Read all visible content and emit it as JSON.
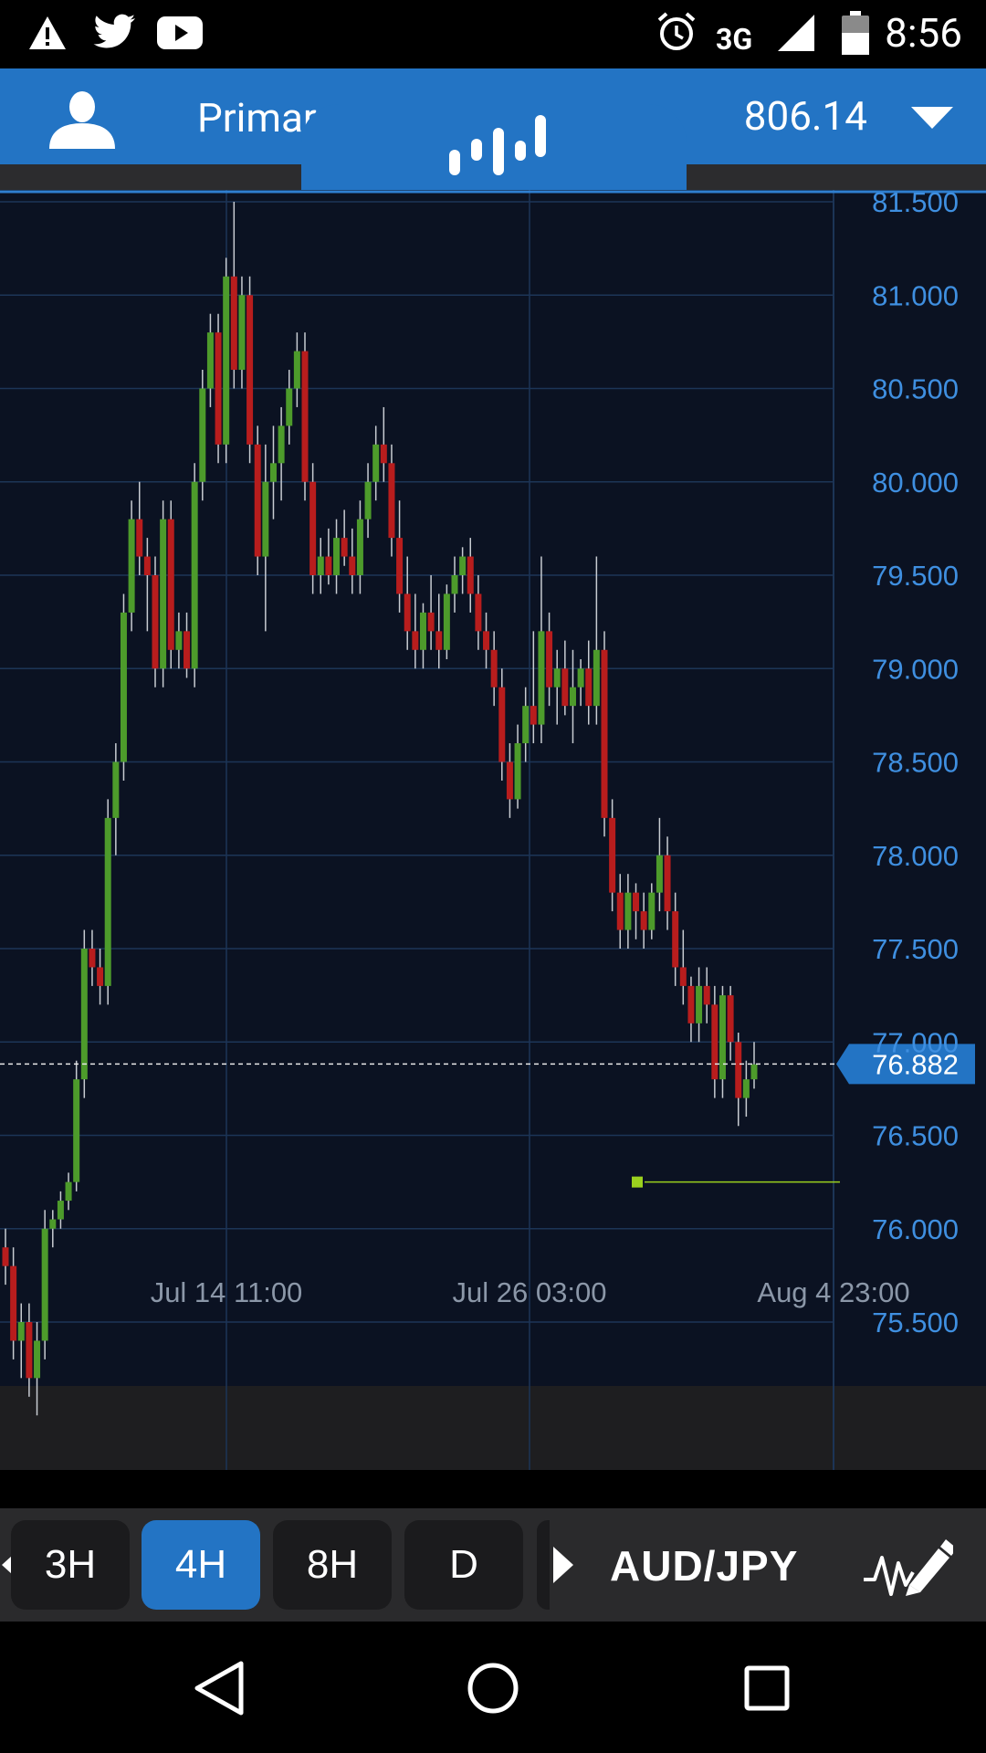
{
  "status_bar": {
    "network": "3G",
    "time": "8:56",
    "icons": [
      "warning-icon",
      "twitter-icon",
      "youtube-icon",
      "alarm-icon",
      "signal-icon",
      "battery-icon"
    ]
  },
  "header": {
    "account_label": "Primar",
    "balance": "806.14"
  },
  "chart": {
    "symbol": "AUD/JPY",
    "current_price_label": "76.882",
    "y_labels": [
      "81.500",
      "81.000",
      "80.500",
      "80.000",
      "79.500",
      "79.000",
      "78.500",
      "78.000",
      "77.500",
      "77.000",
      "76.500",
      "76.000",
      "75.500"
    ],
    "x_labels": [
      "Jul 14 11:00",
      "Jul 26 03:00",
      "Aug 4 23:00"
    ]
  },
  "chart_data": {
    "type": "candlestick",
    "title": "",
    "xlabel": "",
    "ylabel": "",
    "ylim": [
      74.8,
      81.53
    ],
    "grid": true,
    "x_ticks": [
      "Jul 14 11:00",
      "Jul 26 03:00",
      "Aug 4 23:00"
    ],
    "current_price": 76.882,
    "marker_level": 76.25,
    "up_color": "#4d9b2b",
    "down_color": "#b81d1d",
    "ohlc": [
      [
        75.9,
        76.0,
        75.7,
        75.8
      ],
      [
        75.8,
        75.9,
        75.3,
        75.4
      ],
      [
        75.4,
        75.6,
        75.2,
        75.5
      ],
      [
        75.5,
        75.6,
        75.1,
        75.2
      ],
      [
        75.2,
        75.5,
        75.0,
        75.4
      ],
      [
        75.4,
        76.1,
        75.3,
        76.0
      ],
      [
        76.0,
        76.1,
        75.9,
        76.05
      ],
      [
        76.05,
        76.2,
        76.0,
        76.15
      ],
      [
        76.15,
        76.3,
        76.1,
        76.25
      ],
      [
        76.25,
        76.9,
        76.2,
        76.8
      ],
      [
        76.8,
        77.6,
        76.7,
        77.5
      ],
      [
        77.5,
        77.6,
        77.3,
        77.4
      ],
      [
        77.4,
        77.5,
        77.2,
        77.3
      ],
      [
        77.3,
        78.3,
        77.2,
        78.2
      ],
      [
        78.2,
        78.6,
        78.0,
        78.5
      ],
      [
        78.5,
        79.4,
        78.4,
        79.3
      ],
      [
        79.3,
        79.9,
        79.2,
        79.8
      ],
      [
        79.8,
        80.0,
        79.5,
        79.6
      ],
      [
        79.6,
        79.7,
        79.2,
        79.5
      ],
      [
        79.5,
        79.6,
        78.9,
        79.0
      ],
      [
        79.0,
        79.9,
        78.9,
        79.8
      ],
      [
        79.8,
        79.9,
        79.0,
        79.1
      ],
      [
        79.1,
        79.3,
        79.0,
        79.2
      ],
      [
        79.2,
        79.3,
        78.95,
        79.0
      ],
      [
        79.0,
        80.1,
        78.9,
        80.0
      ],
      [
        80.0,
        80.6,
        79.9,
        80.5
      ],
      [
        80.5,
        80.9,
        80.4,
        80.8
      ],
      [
        80.8,
        80.9,
        80.1,
        80.2
      ],
      [
        80.2,
        81.2,
        80.1,
        81.1
      ],
      [
        81.1,
        81.5,
        80.5,
        80.6
      ],
      [
        80.6,
        81.1,
        80.5,
        81.0
      ],
      [
        81.0,
        81.1,
        80.1,
        80.2
      ],
      [
        80.2,
        80.3,
        79.5,
        79.6
      ],
      [
        79.6,
        80.2,
        79.2,
        80.0
      ],
      [
        80.0,
        80.3,
        79.8,
        80.1
      ],
      [
        80.1,
        80.4,
        79.9,
        80.3
      ],
      [
        80.3,
        80.6,
        80.2,
        80.5
      ],
      [
        80.5,
        80.8,
        80.4,
        80.7
      ],
      [
        80.7,
        80.8,
        79.9,
        80.0
      ],
      [
        80.0,
        80.1,
        79.4,
        79.5
      ],
      [
        79.5,
        79.7,
        79.4,
        79.6
      ],
      [
        79.6,
        79.75,
        79.45,
        79.5
      ],
      [
        79.5,
        79.8,
        79.4,
        79.7
      ],
      [
        79.7,
        79.85,
        79.55,
        79.6
      ],
      [
        79.6,
        79.75,
        79.4,
        79.5
      ],
      [
        79.5,
        79.9,
        79.4,
        79.8
      ],
      [
        79.8,
        80.1,
        79.7,
        80.0
      ],
      [
        80.0,
        80.3,
        79.9,
        80.2
      ],
      [
        80.2,
        80.4,
        80.0,
        80.1
      ],
      [
        80.1,
        80.2,
        79.6,
        79.7
      ],
      [
        79.7,
        79.9,
        79.3,
        79.4
      ],
      [
        79.4,
        79.6,
        79.1,
        79.2
      ],
      [
        79.2,
        79.4,
        79.0,
        79.1
      ],
      [
        79.1,
        79.35,
        79.0,
        79.3
      ],
      [
        79.3,
        79.5,
        79.1,
        79.2
      ],
      [
        79.2,
        79.4,
        79.0,
        79.1
      ],
      [
        79.1,
        79.45,
        79.05,
        79.4
      ],
      [
        79.4,
        79.6,
        79.3,
        79.5
      ],
      [
        79.5,
        79.65,
        79.4,
        79.6
      ],
      [
        79.6,
        79.7,
        79.3,
        79.4
      ],
      [
        79.4,
        79.5,
        79.1,
        79.2
      ],
      [
        79.2,
        79.3,
        79.0,
        79.1
      ],
      [
        79.1,
        79.2,
        78.8,
        78.9
      ],
      [
        78.9,
        79.0,
        78.4,
        78.5
      ],
      [
        78.5,
        78.6,
        78.2,
        78.3
      ],
      [
        78.3,
        78.7,
        78.25,
        78.6
      ],
      [
        78.6,
        78.9,
        78.5,
        78.8
      ],
      [
        78.8,
        79.2,
        78.6,
        78.7
      ],
      [
        78.7,
        79.6,
        78.6,
        79.2
      ],
      [
        79.2,
        79.3,
        78.8,
        78.9
      ],
      [
        78.9,
        79.1,
        78.7,
        79.0
      ],
      [
        79.0,
        79.15,
        78.75,
        78.8
      ],
      [
        78.8,
        79.1,
        78.6,
        78.9
      ],
      [
        78.9,
        79.05,
        78.8,
        79.0
      ],
      [
        79.0,
        79.15,
        78.7,
        78.8
      ],
      [
        78.8,
        79.6,
        78.7,
        79.1
      ],
      [
        79.1,
        79.2,
        78.1,
        78.2
      ],
      [
        78.2,
        78.3,
        77.7,
        77.8
      ],
      [
        77.8,
        77.9,
        77.5,
        77.6
      ],
      [
        77.6,
        77.9,
        77.5,
        77.8
      ],
      [
        77.8,
        77.85,
        77.55,
        77.7
      ],
      [
        77.7,
        77.8,
        77.5,
        77.6
      ],
      [
        77.6,
        77.85,
        77.55,
        77.8
      ],
      [
        77.8,
        78.2,
        77.7,
        78.0
      ],
      [
        78.0,
        78.1,
        77.6,
        77.7
      ],
      [
        77.7,
        77.8,
        77.3,
        77.4
      ],
      [
        77.4,
        77.6,
        77.2,
        77.3
      ],
      [
        77.3,
        77.35,
        77.0,
        77.1
      ],
      [
        77.1,
        77.4,
        77.0,
        77.3
      ],
      [
        77.3,
        77.4,
        77.1,
        77.2
      ],
      [
        77.2,
        77.3,
        76.7,
        76.8
      ],
      [
        76.8,
        77.3,
        76.7,
        77.25
      ],
      [
        77.25,
        77.3,
        76.9,
        77.0
      ],
      [
        77.0,
        77.05,
        76.55,
        76.7
      ],
      [
        76.7,
        76.9,
        76.6,
        76.8
      ],
      [
        76.8,
        77.0,
        76.75,
        76.88
      ]
    ]
  },
  "toolbar": {
    "timeframes": [
      "3H",
      "4H",
      "8H",
      "D"
    ],
    "active_timeframe": "4H",
    "symbol": "AUD/JPY"
  },
  "nav": {
    "icons": [
      "back-icon",
      "home-icon",
      "recents-icon"
    ]
  }
}
